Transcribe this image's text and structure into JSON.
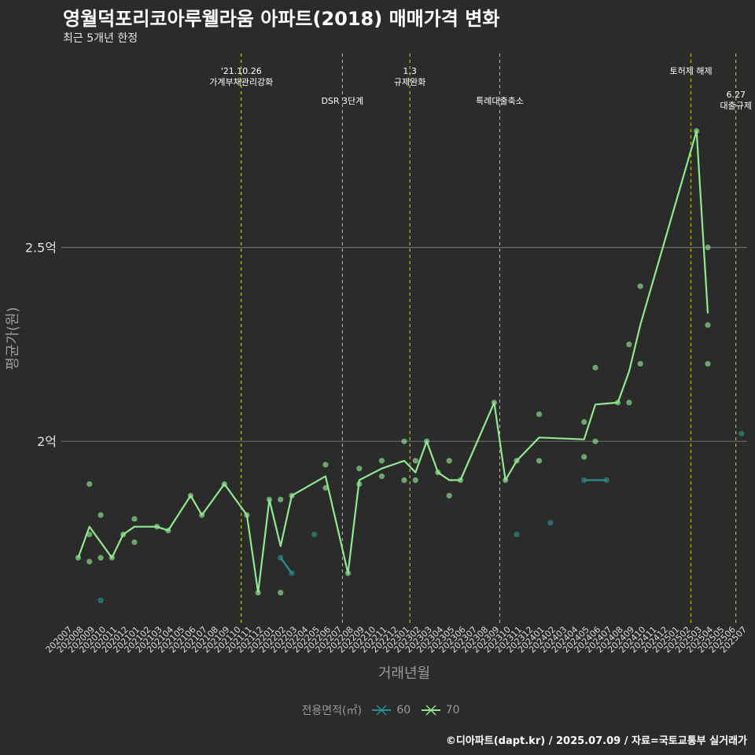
{
  "colors": {
    "background": "#2b2b2b",
    "grid": "#6a6a6a",
    "series60": "#2a8f8f",
    "series70": "#90e890",
    "event": "#d8d800",
    "axis_text": "#9a9a9a"
  },
  "chart_data": {
    "type": "line",
    "title": "영월덕포리코아루웰라움 아파트(2018) 매매가격 변화",
    "subtitle": "최근 5개년 한정",
    "xlabel": "거래년월",
    "ylabel": "평균가(원)",
    "categories": [
      "202007",
      "202008",
      "202009",
      "202010",
      "202011",
      "202012",
      "202101",
      "202102",
      "202103",
      "202104",
      "202105",
      "202106",
      "202107",
      "202108",
      "202109",
      "202110",
      "202111",
      "202112",
      "202201",
      "202202",
      "202203",
      "202204",
      "202205",
      "202206",
      "202207",
      "202208",
      "202209",
      "202210",
      "202211",
      "202212",
      "202301",
      "202302",
      "202303",
      "202304",
      "202305",
      "202306",
      "202307",
      "202308",
      "202309",
      "202310",
      "202311",
      "202312",
      "202401",
      "202402",
      "202403",
      "202404",
      "202405",
      "202406",
      "202407",
      "202408",
      "202409",
      "202410",
      "202411",
      "202412",
      "202501",
      "202502",
      "202503",
      "202504",
      "202505",
      "202506",
      "202507"
    ],
    "ylim": [
      1.53,
      3.0
    ],
    "yticks": [
      {
        "value": 2.0,
        "label": "2억"
      },
      {
        "value": 2.5,
        "label": "2.5억"
      }
    ],
    "legend_title": "전용면적(㎡)",
    "series": [
      {
        "name": "60",
        "line": [
          [
            "202202",
            1.7
          ],
          [
            "202203",
            1.66
          ]
        ],
        "line2": [
          [
            "202405",
            1.9
          ],
          [
            "202407",
            1.9
          ]
        ],
        "points": [
          [
            "202010",
            1.59
          ],
          [
            "202202",
            1.7
          ],
          [
            "202203",
            1.66
          ],
          [
            "202205",
            1.76
          ],
          [
            "202311",
            1.76
          ],
          [
            "202402",
            1.79
          ],
          [
            "202405",
            1.9
          ],
          [
            "202407",
            1.9
          ],
          [
            "202507",
            2.02
          ]
        ]
      },
      {
        "name": "70",
        "line": [
          [
            "202008",
            1.7
          ],
          [
            "202009",
            1.78
          ],
          [
            "202010",
            1.74
          ],
          [
            "202011",
            1.7
          ],
          [
            "202012",
            1.76
          ],
          [
            "202101",
            1.78
          ],
          [
            "202103",
            1.78
          ],
          [
            "202104",
            1.77
          ],
          [
            "202106",
            1.86
          ],
          [
            "202107",
            1.81
          ],
          [
            "202109",
            1.89
          ],
          [
            "202111",
            1.81
          ],
          [
            "202112",
            1.61
          ],
          [
            "202201",
            1.85
          ],
          [
            "202202",
            1.73
          ],
          [
            "202203",
            1.86
          ],
          [
            "202206",
            1.91
          ],
          [
            "202208",
            1.66
          ],
          [
            "202209",
            1.9
          ],
          [
            "202211",
            1.93
          ],
          [
            "202301",
            1.95
          ],
          [
            "202302",
            1.92
          ],
          [
            "202303",
            2.0
          ],
          [
            "202304",
            1.92
          ],
          [
            "202305",
            1.9
          ],
          [
            "202306",
            1.9
          ],
          [
            "202309",
            2.1
          ],
          [
            "202310",
            1.9
          ],
          [
            "202311",
            1.95
          ],
          [
            "202401",
            2.01
          ],
          [
            "202405",
            2.005
          ],
          [
            "202406",
            2.095
          ],
          [
            "202408",
            2.1
          ],
          [
            "202409",
            2.18
          ],
          [
            "202410",
            2.3
          ],
          [
            "202503",
            2.8
          ],
          [
            "202504",
            2.33
          ]
        ],
        "points": [
          [
            "202008",
            1.7
          ],
          [
            "202009",
            1.69
          ],
          [
            "202009",
            1.76
          ],
          [
            "202009",
            1.89
          ],
          [
            "202010",
            1.7
          ],
          [
            "202010",
            1.81
          ],
          [
            "202011",
            1.7
          ],
          [
            "202012",
            1.76
          ],
          [
            "202101",
            1.74
          ],
          [
            "202101",
            1.8
          ],
          [
            "202103",
            1.78
          ],
          [
            "202104",
            1.77
          ],
          [
            "202106",
            1.86
          ],
          [
            "202107",
            1.81
          ],
          [
            "202109",
            1.89
          ],
          [
            "202111",
            1.81
          ],
          [
            "202112",
            1.61
          ],
          [
            "202201",
            1.85
          ],
          [
            "202202",
            1.61
          ],
          [
            "202202",
            1.85
          ],
          [
            "202203",
            1.86
          ],
          [
            "202206",
            1.88
          ],
          [
            "202206",
            1.94
          ],
          [
            "202208",
            1.66
          ],
          [
            "202209",
            1.89
          ],
          [
            "202209",
            1.93
          ],
          [
            "202211",
            1.91
          ],
          [
            "202211",
            1.95
          ],
          [
            "202301",
            1.9
          ],
          [
            "202301",
            2.0
          ],
          [
            "202302",
            1.9
          ],
          [
            "202302",
            1.95
          ],
          [
            "202303",
            2.0
          ],
          [
            "202304",
            1.92
          ],
          [
            "202305",
            1.86
          ],
          [
            "202305",
            1.95
          ],
          [
            "202306",
            1.9
          ],
          [
            "202309",
            2.1
          ],
          [
            "202310",
            1.9
          ],
          [
            "202311",
            1.95
          ],
          [
            "202401",
            1.95
          ],
          [
            "202401",
            2.07
          ],
          [
            "202405",
            1.96
          ],
          [
            "202405",
            2.05
          ],
          [
            "202406",
            2.0
          ],
          [
            "202406",
            2.19
          ],
          [
            "202408",
            2.1
          ],
          [
            "202409",
            2.1
          ],
          [
            "202409",
            2.25
          ],
          [
            "202410",
            2.2
          ],
          [
            "202410",
            2.4
          ],
          [
            "202503",
            2.8
          ],
          [
            "202504",
            2.2
          ],
          [
            "202504",
            2.3
          ],
          [
            "202504",
            2.5
          ]
        ]
      }
    ],
    "annotations": [
      {
        "x": "202110",
        "lines": [
          "'21.10.26",
          "가계부채관리강화"
        ],
        "row": 0
      },
      {
        "x": "202207",
        "lines": [
          "DSR 3단계"
        ],
        "row": 1
      },
      {
        "x": "202301",
        "lines": [
          "1.3",
          "규제완화"
        ],
        "row": 0
      },
      {
        "x": "202309",
        "lines": [
          "특례대출축소"
        ],
        "row": 1
      },
      {
        "x": "202502",
        "lines": [
          "토허제 해제"
        ],
        "row": 0
      },
      {
        "x": "202506",
        "lines": [
          "6.27",
          "대출규제"
        ],
        "row": 2
      }
    ]
  },
  "caption": "©디아파트(dapt.kr) / 2025.07.09 / 자료=국토교통부 실거래가"
}
